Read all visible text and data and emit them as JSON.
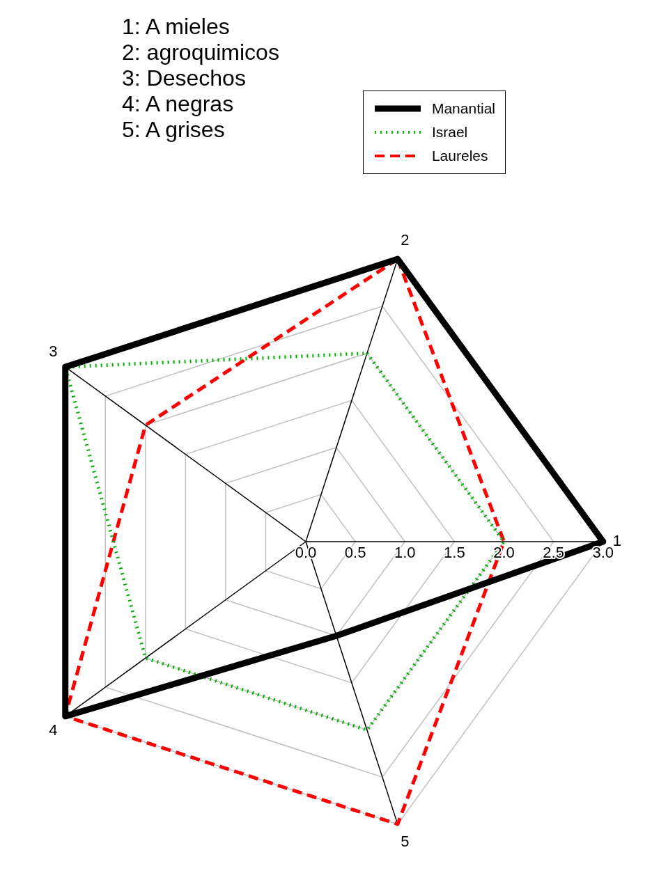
{
  "chart_data": {
    "type": "radar",
    "categories": [
      "2",
      "1",
      "5",
      "4",
      "3"
    ],
    "series": [
      {
        "name": "Manantial",
        "color": "#000000",
        "line_style": "solid",
        "values": [
          3.0,
          3.0,
          1.0,
          3.0,
          3.0
        ]
      },
      {
        "name": "Israel",
        "color": "#00b000",
        "line_style": "dotted",
        "values": [
          2.0,
          2.0,
          2.0,
          2.0,
          3.0
        ]
      },
      {
        "name": "Laureles",
        "color": "#ff0000",
        "line_style": "dashed",
        "values": [
          3.0,
          2.0,
          3.0,
          3.0,
          2.0
        ]
      }
    ],
    "ylim": [
      0,
      3
    ],
    "yticks": [
      {
        "value": 0,
        "label": "0.0"
      },
      {
        "value": 0.5,
        "label": "0.5"
      },
      {
        "value": 1,
        "label": "1.0"
      },
      {
        "value": 1.5,
        "label": "1.5"
      },
      {
        "value": 2,
        "label": "2.0"
      },
      {
        "value": 2.5,
        "label": "2.5"
      },
      {
        "value": 3,
        "label": "3.0"
      }
    ],
    "grid": true,
    "legend": "top right",
    "marker": "none",
    "annotations": [
      "1: A mieles",
      "2: agroquimicos",
      "3: Desechos",
      "4: A negras",
      "5: A grises"
    ]
  }
}
